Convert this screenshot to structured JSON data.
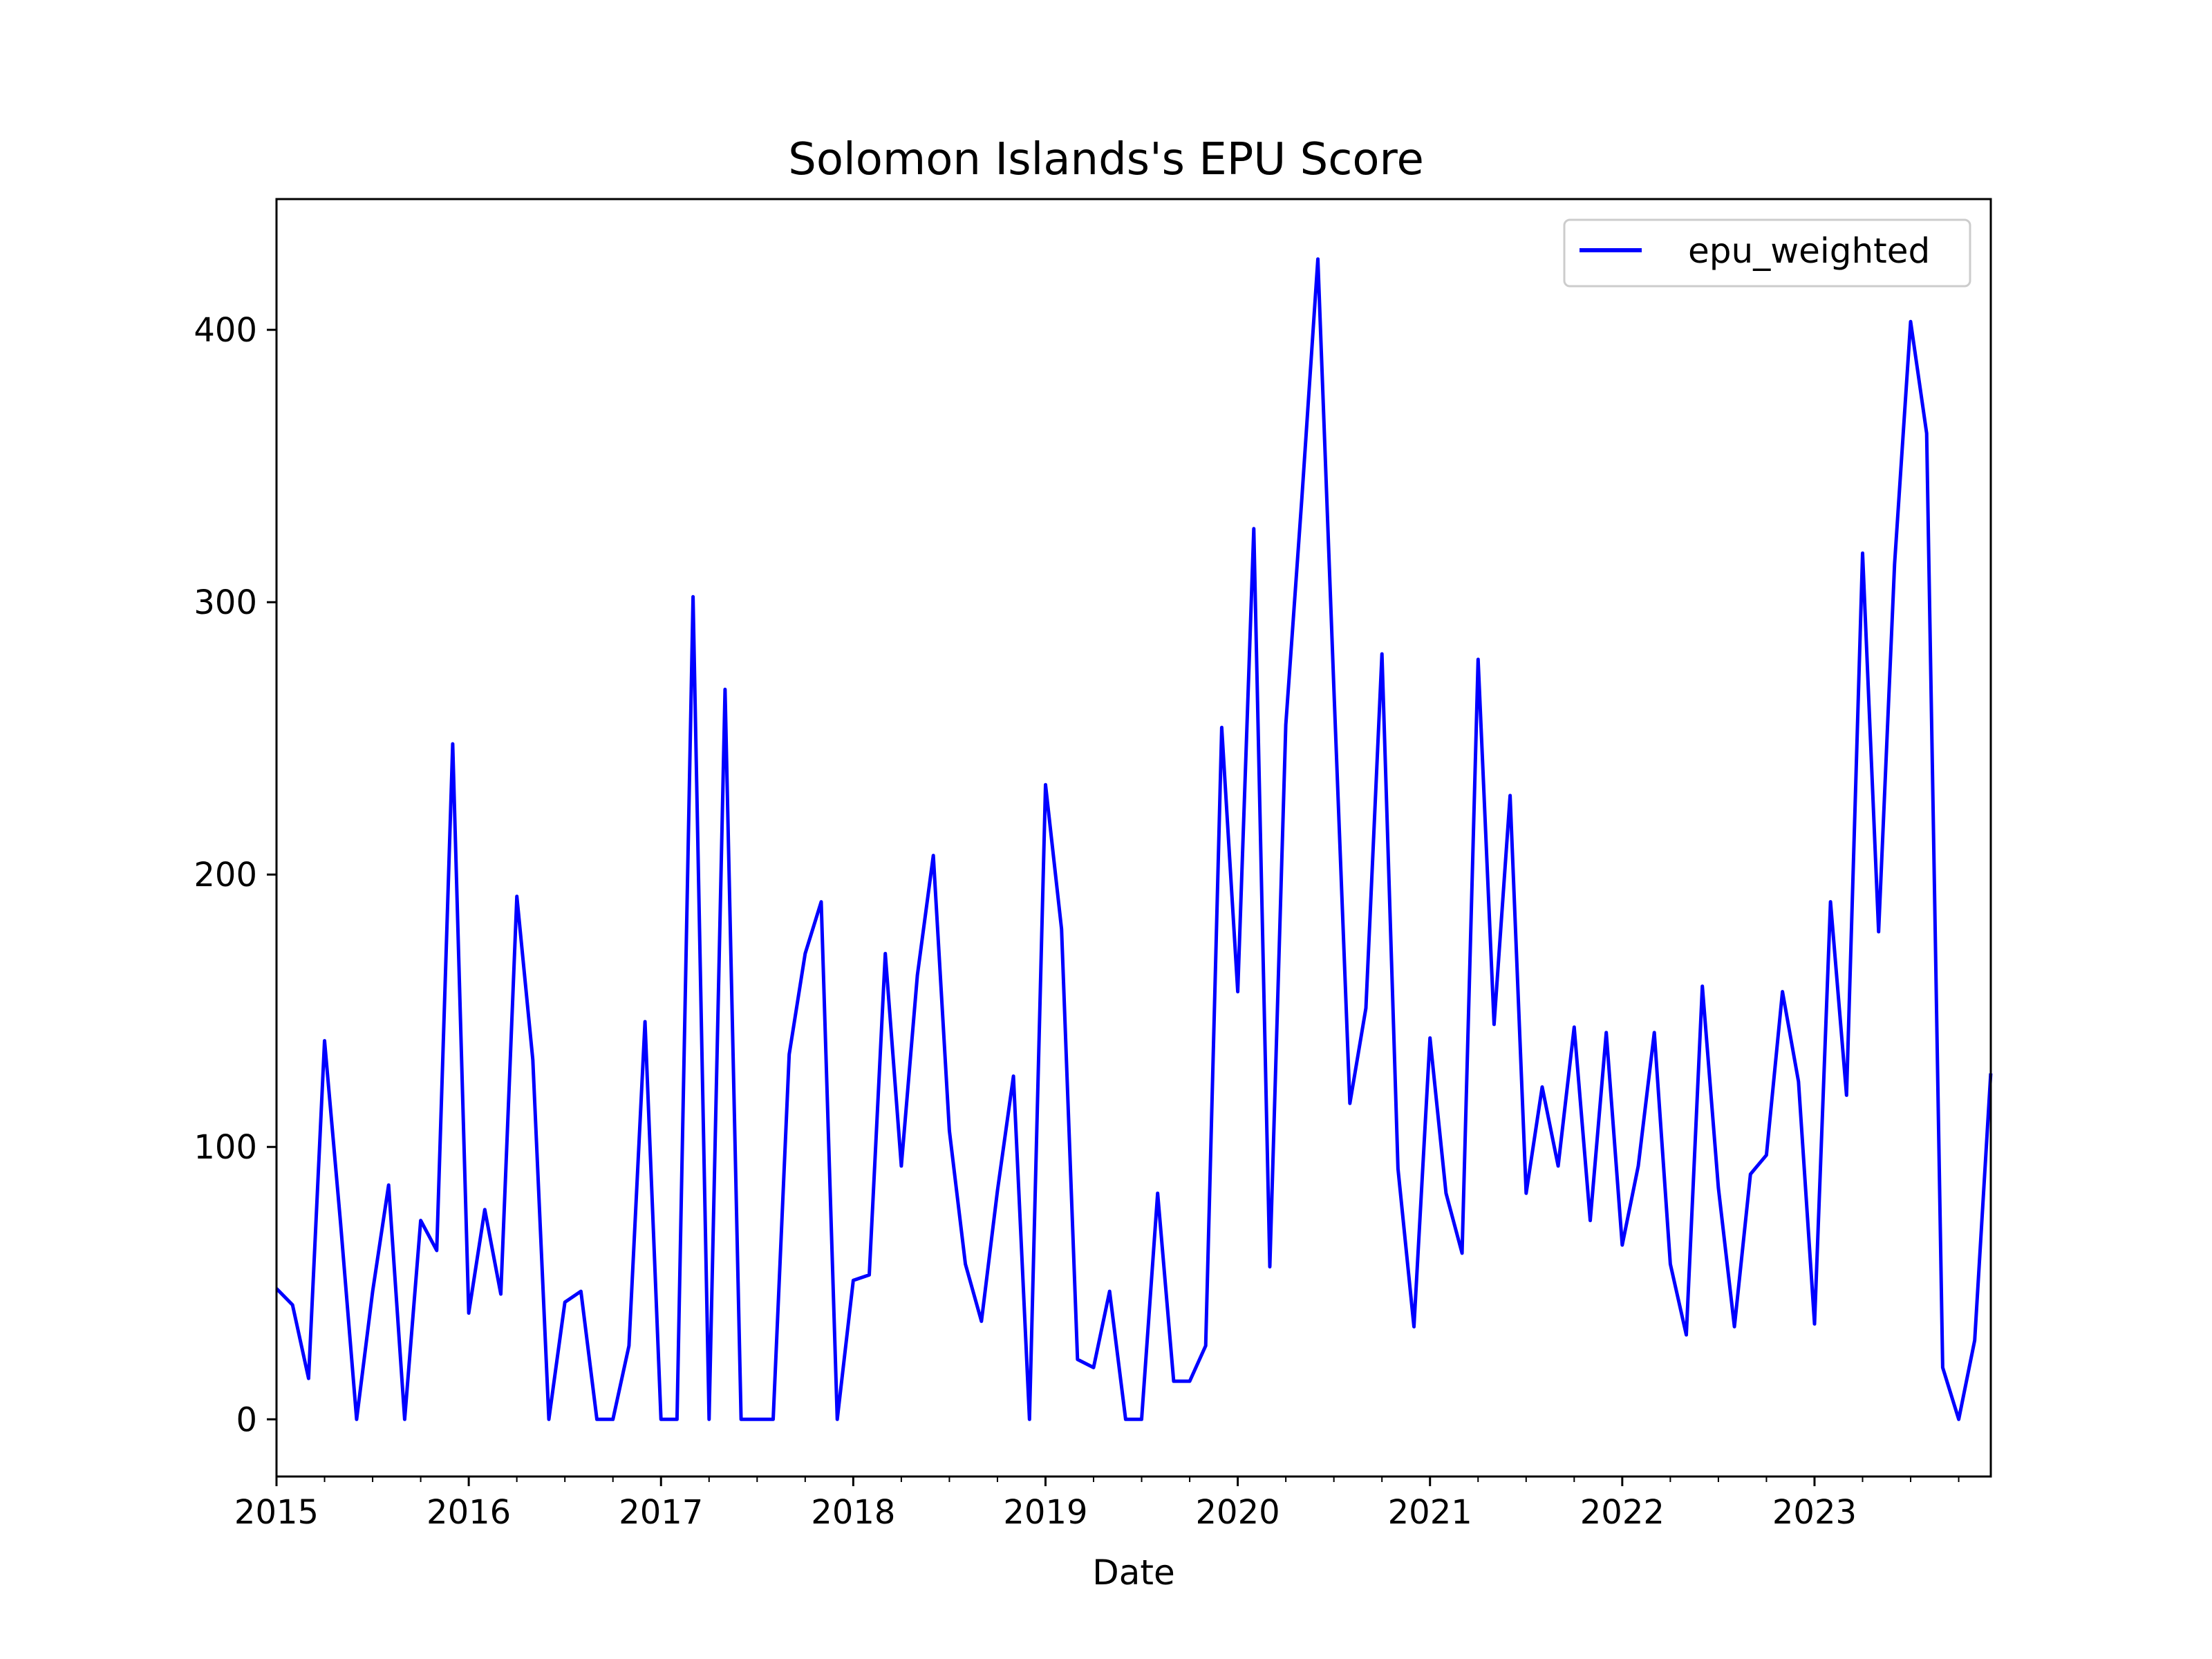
{
  "chart_data": {
    "type": "line",
    "title": "Solomon Islands's EPU Score",
    "xlabel": "Date",
    "ylabel": "",
    "x_start": "2015-01",
    "x_end": "2023-12",
    "xlim": [
      2015.0,
      2023.917
    ],
    "ylim": [
      -21,
      448
    ],
    "xticks": [
      2015,
      2016,
      2017,
      2018,
      2019,
      2020,
      2021,
      2022,
      2023
    ],
    "xtick_labels": [
      "2015",
      "2016",
      "2017",
      "2018",
      "2019",
      "2020",
      "2021",
      "2022",
      "2023"
    ],
    "yticks": [
      0,
      100,
      200,
      300,
      400
    ],
    "ytick_labels": [
      "0",
      "100",
      "200",
      "300",
      "400"
    ],
    "grid": false,
    "legend_position": "top-right",
    "series": [
      {
        "name": "epu_weighted",
        "color": "#0000ff",
        "values": [
          48,
          42,
          15,
          139,
          72,
          0,
          47,
          86,
          0,
          73,
          62,
          248,
          39,
          77,
          46,
          192,
          132,
          0,
          43,
          47,
          0,
          0,
          27,
          146,
          0,
          0,
          302,
          0,
          268,
          0,
          0,
          0,
          134,
          171,
          190,
          0,
          51,
          53,
          171,
          93,
          163,
          207,
          106,
          57,
          36,
          84,
          126,
          0,
          233,
          180,
          22,
          19,
          47,
          0,
          0,
          83,
          14,
          14,
          27,
          254,
          157,
          327,
          56,
          255,
          338,
          426,
          268,
          116,
          151,
          281,
          92,
          34,
          140,
          83,
          61,
          279,
          145,
          229,
          83,
          122,
          93,
          144,
          73,
          142,
          64,
          93,
          142,
          57,
          31,
          159,
          85,
          34,
          90,
          97,
          157,
          124,
          35,
          190,
          119,
          318,
          179,
          314,
          403,
          362,
          19,
          0,
          29,
          127
        ]
      }
    ]
  }
}
